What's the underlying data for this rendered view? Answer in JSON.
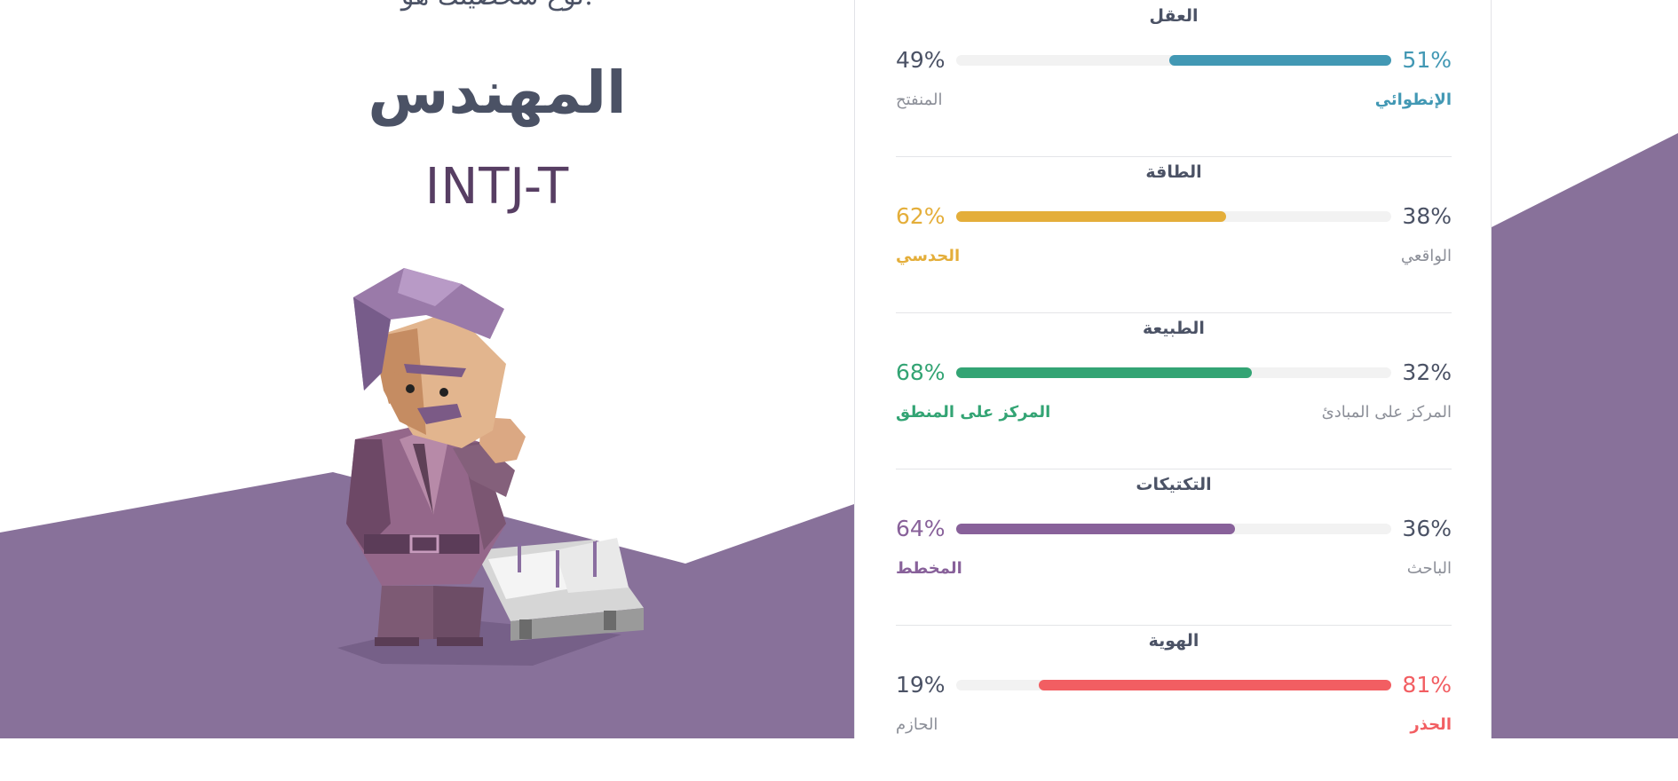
{
  "hero": {
    "partial_heading": "نوع شخصيتك هو:",
    "type_name": "المهندس",
    "type_code": "INTJ-T"
  },
  "colors": {
    "purple_bg": "#88719a",
    "mind": "#4298b4",
    "energy": "#e4ae3a",
    "nature": "#33a474",
    "tactics": "#88619a",
    "identity": "#f25e62"
  },
  "scales": [
    {
      "title": "العقل",
      "left_pct": "49%",
      "right_pct": "51%",
      "left_trait": "المنفتح",
      "right_trait": "الإنطوائي",
      "dominant": "right",
      "fill_fraction": 0.51,
      "color": "#4298b4"
    },
    {
      "title": "الطاقة",
      "left_pct": "62%",
      "right_pct": "38%",
      "left_trait": "الحدسي",
      "right_trait": "الواقعي",
      "dominant": "left",
      "fill_fraction": 0.62,
      "color": "#e4ae3a"
    },
    {
      "title": "الطبيعة",
      "left_pct": "68%",
      "right_pct": "32%",
      "left_trait": "المركز على المنطق",
      "right_trait": "المركز على المبادئ",
      "dominant": "left",
      "fill_fraction": 0.68,
      "color": "#33a474"
    },
    {
      "title": "التكتيكات",
      "left_pct": "64%",
      "right_pct": "36%",
      "left_trait": "المخطط",
      "right_trait": "الباحث",
      "dominant": "left",
      "fill_fraction": 0.64,
      "color": "#88619a"
    },
    {
      "title": "الهوية",
      "left_pct": "19%",
      "right_pct": "81%",
      "left_trait": "الحازم",
      "right_trait": "الحذر",
      "dominant": "right",
      "fill_fraction": 0.81,
      "color": "#f25e62"
    }
  ]
}
